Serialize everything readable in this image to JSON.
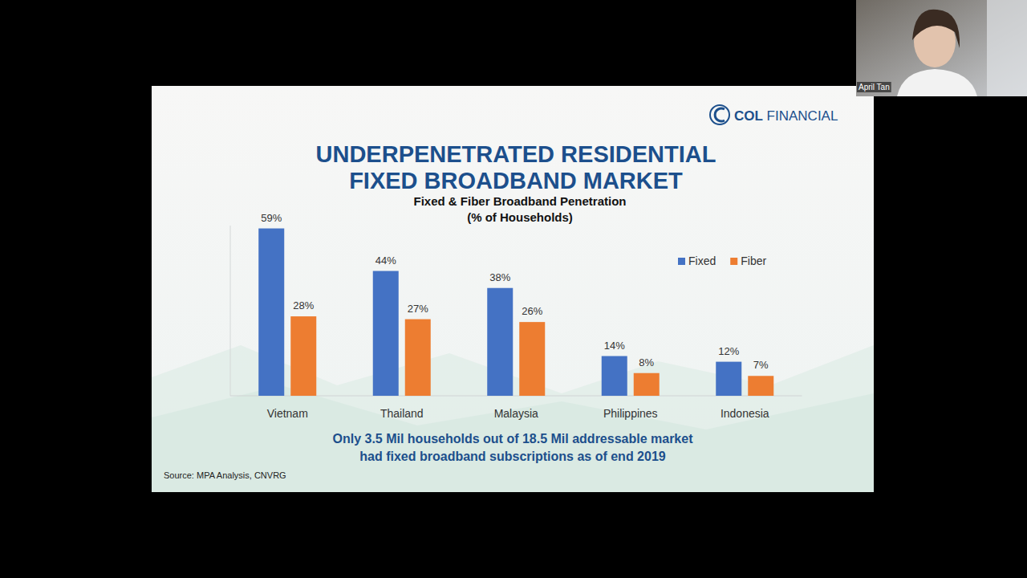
{
  "chart_data": {
    "type": "bar",
    "title": [
      "UNDERPENETRATED RESIDENTIAL",
      "FIXED BROADBAND MARKET"
    ],
    "subtitle": [
      "Fixed & Fiber Broadband Penetration",
      "(% of Households)"
    ],
    "categories": [
      "Vietnam",
      "Thailand",
      "Malaysia",
      "Philippines",
      "Indonesia"
    ],
    "series": [
      {
        "name": "Fixed",
        "color": "#4472c4",
        "values": [
          59,
          44,
          38,
          14,
          12
        ],
        "value_labels": [
          "59%",
          "44%",
          "38%",
          "14%",
          "12%"
        ]
      },
      {
        "name": "Fiber",
        "color": "#ed7d31",
        "values": [
          28,
          27,
          26,
          8,
          7
        ],
        "value_labels": [
          "28%",
          "27%",
          "26%",
          "8%",
          "7%"
        ]
      }
    ],
    "ylim": [
      0,
      60
    ],
    "data_labels": true,
    "tick_labels": "x",
    "legend": "upper right",
    "annotation": [
      "Only 3.5 Mil households out of 18.5 Mil addressable market",
      "had fixed broadband subscriptions as of end 2019"
    ],
    "source": "Source: MPA Analysis, CNVRG"
  },
  "slide": {
    "logo": "COL FINANCIAL",
    "presenter": "April Tan"
  }
}
